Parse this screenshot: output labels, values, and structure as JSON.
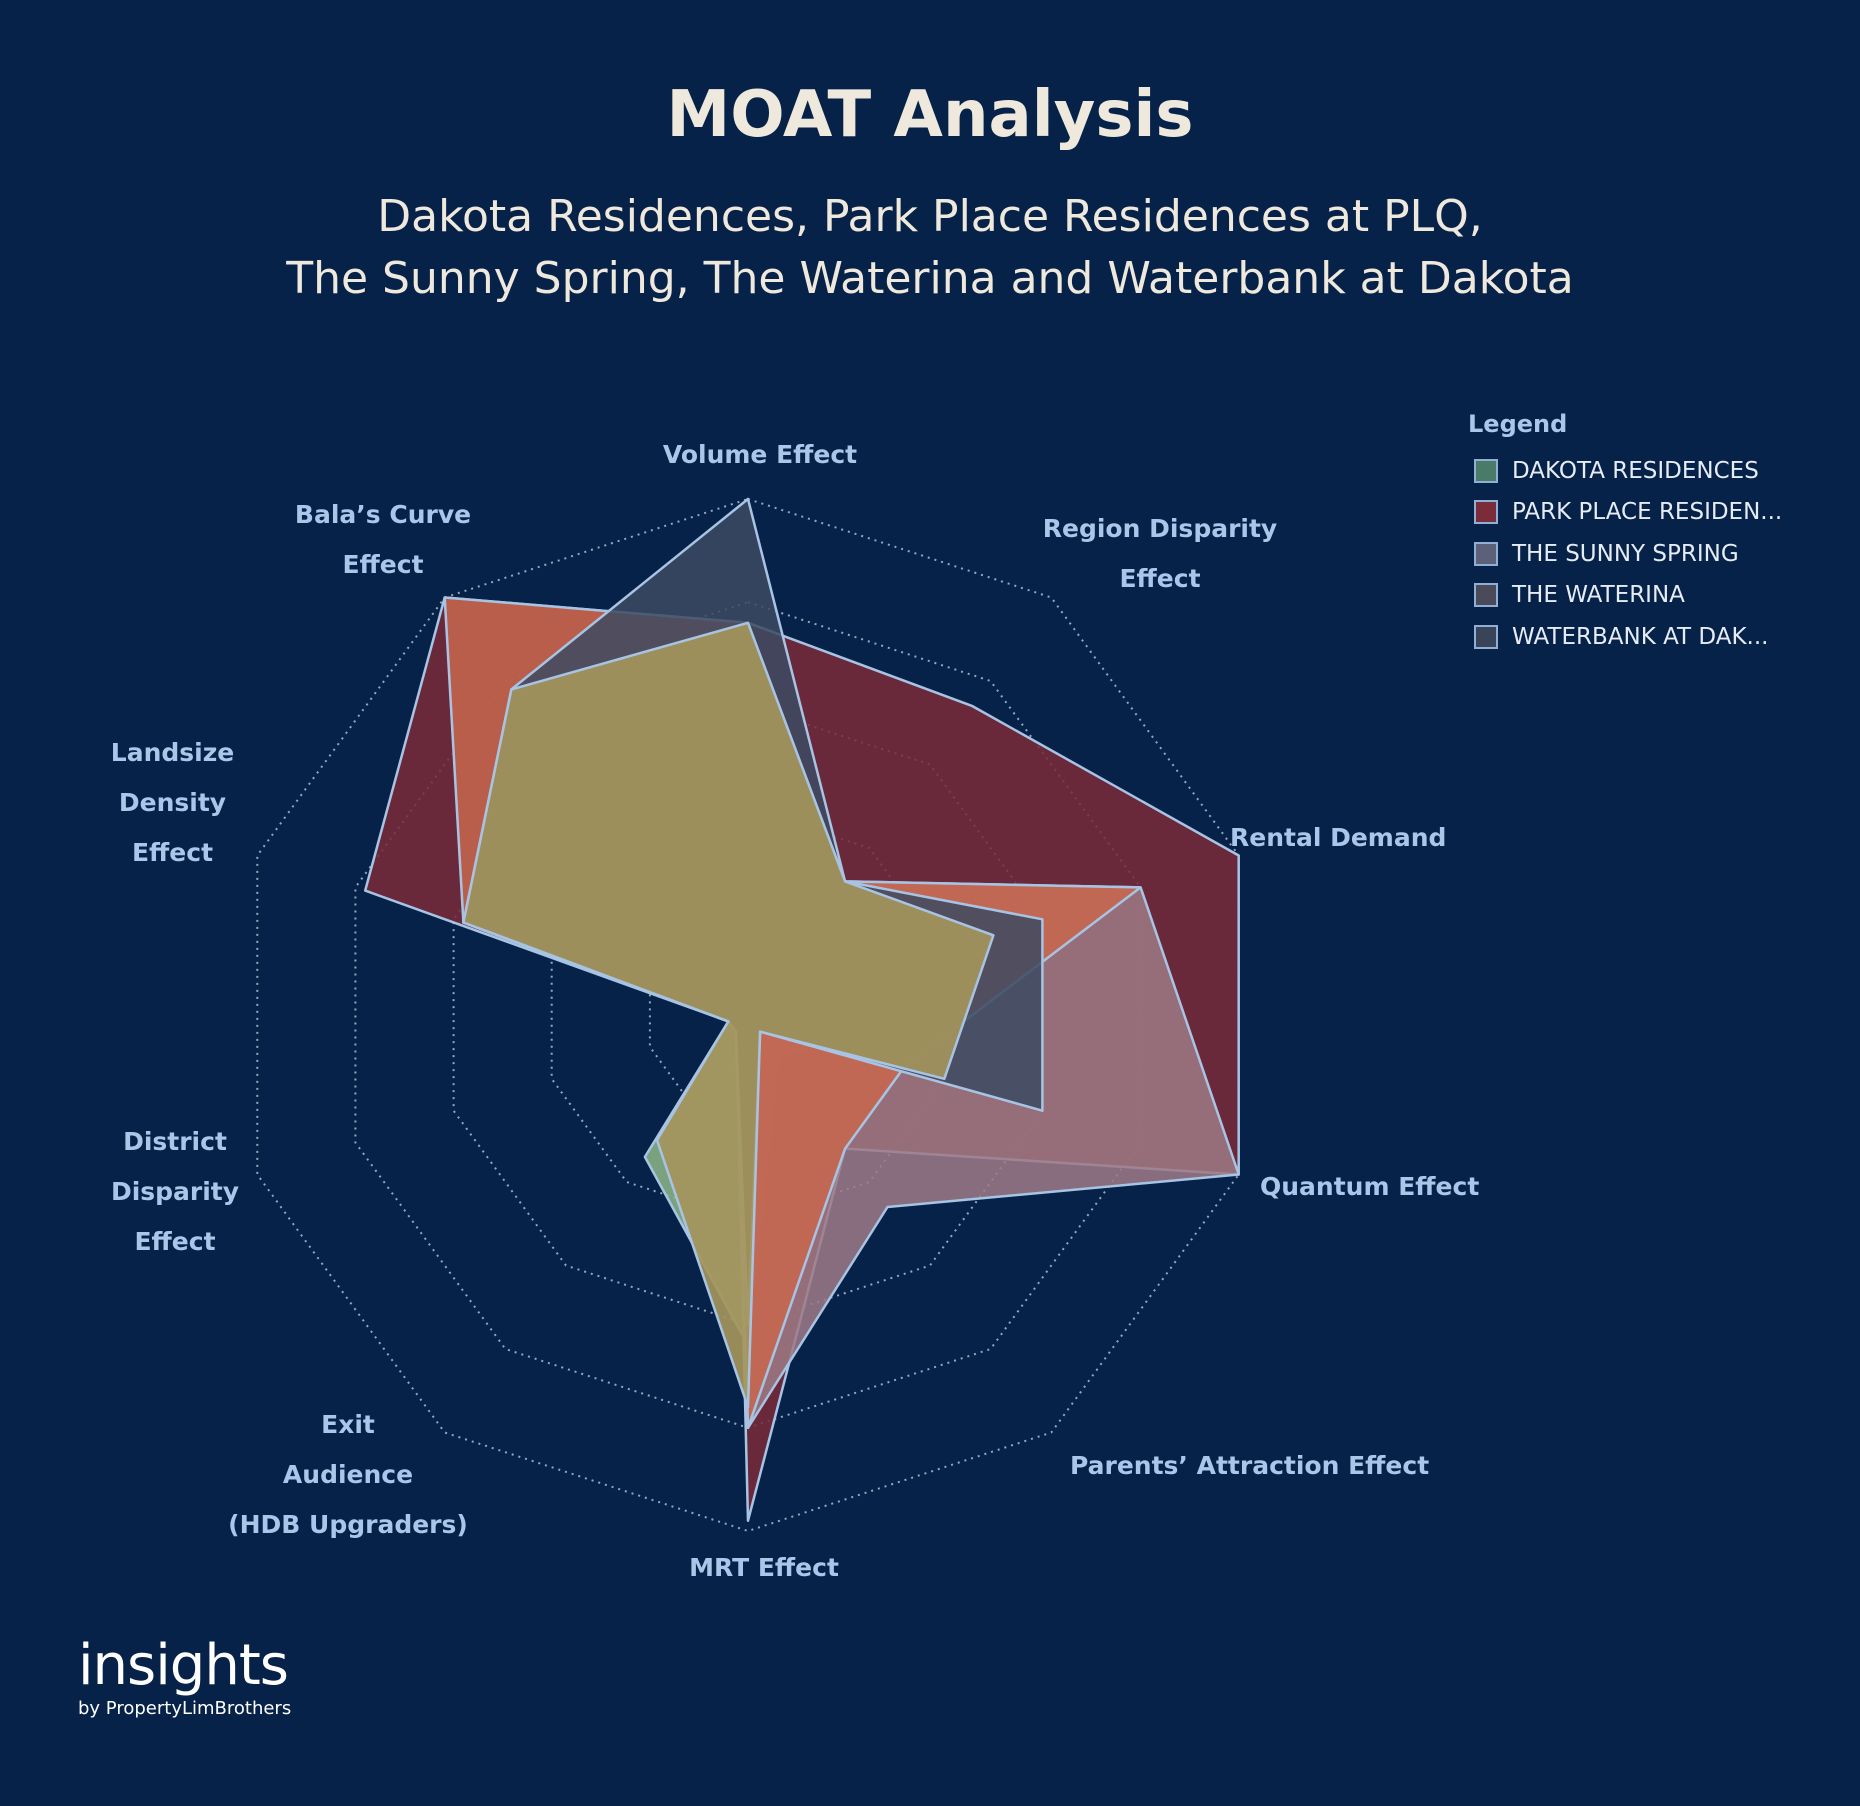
{
  "header": {
    "title": "MOAT Analysis",
    "subtitle_line1": "Dakota Residences, Park Place Residences at PLQ,",
    "subtitle_line2": "The Sunny Spring, The Waterina and Waterbank at Dakota"
  },
  "legend": {
    "title": "Legend",
    "items": [
      {
        "label": "DAKOTA RESIDENCES",
        "color": "#4a7a68"
      },
      {
        "label": "PARK PLACE RESIDEN...",
        "color": "#7a2c3a"
      },
      {
        "label": "THE SUNNY SPRING",
        "color": "#5c6078"
      },
      {
        "label": "THE WATERINA",
        "color": "#4a4a58"
      },
      {
        "label": "WATERBANK AT DAK...",
        "color": "#3a4458"
      }
    ]
  },
  "axis_labels": {
    "volume": [
      "Volume Effect"
    ],
    "region": [
      "Region Disparity",
      "Effect"
    ],
    "rental": [
      "Rental Demand"
    ],
    "quantum": [
      "Quantum Effect"
    ],
    "parents": [
      "Parents’ Attraction Effect"
    ],
    "mrt": [
      "MRT Effect"
    ],
    "exit": [
      "Exit",
      "Audience",
      "(HDB Upgraders)"
    ],
    "district": [
      "District",
      "Disparity",
      "Effect"
    ],
    "landsize": [
      "Landsize",
      "Density",
      "Effect"
    ],
    "bala": [
      "Bala’s Curve",
      "Effect"
    ]
  },
  "chart_data": {
    "type": "radar",
    "title": "MOAT Analysis",
    "axes": [
      "Volume Effect",
      "Region Disparity Effect",
      "Rental Demand",
      "Quantum Effect",
      "Parents’ Attraction Effect",
      "MRT Effect",
      "Exit Audience (HDB Upgraders)",
      "District Disparity Effect",
      "Landsize Density Effect",
      "Bala’s Curve Effect"
    ],
    "range": [
      0,
      5
    ],
    "gridlines": [
      1,
      2,
      3,
      4,
      5
    ],
    "legend_position": "top-right",
    "series": [
      {
        "name": "DAKOTA RESIDENCES",
        "color": "#8fb888",
        "values": [
          3.8,
          1.6,
          1.6,
          0.9,
          0.5,
          3.2,
          1.7,
          0.2,
          2.9,
          3.9
        ]
      },
      {
        "name": "PARK PLACE RESIDEN...",
        "color": "#7a2a38",
        "values": [
          3.8,
          3.7,
          5.0,
          5.0,
          1.6,
          4.9,
          0.2,
          0.2,
          3.9,
          5.0
        ]
      },
      {
        "name": "THE SUNNY SPRING",
        "color": "#9e7a86",
        "values": [
          3.8,
          1.6,
          4.0,
          5.0,
          2.3,
          4.0,
          0.2,
          0.2,
          2.9,
          3.9
        ]
      },
      {
        "name": "THE WATERINA",
        "color": "#c8674e",
        "values": [
          3.8,
          1.6,
          4.0,
          1.6,
          1.6,
          4.0,
          0.2,
          0.2,
          2.9,
          5.0
        ]
      },
      {
        "name": "WATERBANK AT DAK...",
        "color": "#3c4a62",
        "values": [
          5.0,
          1.6,
          3.0,
          3.0,
          0.2,
          3.0,
          0.2,
          0.2,
          2.9,
          3.9
        ]
      },
      {
        "name": "",
        "color": "#a4955c",
        "values": [
          3.8,
          1.6,
          2.5,
          2.0,
          0.2,
          3.8,
          1.5,
          0.2,
          2.9,
          3.9
        ]
      }
    ]
  }
}
